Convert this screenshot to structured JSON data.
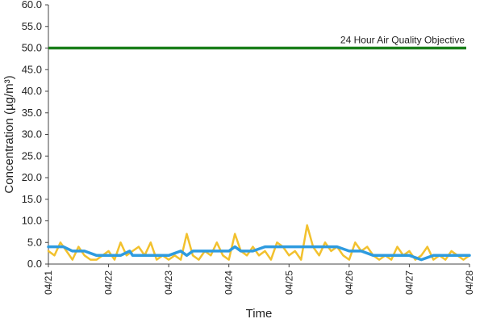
{
  "chart_data": {
    "type": "line",
    "title": "",
    "xlabel": "Time",
    "ylabel": "Concentration (µg/m³)",
    "ylim": [
      0,
      60
    ],
    "y_ticks": [
      "0.0",
      "5.0",
      "10.0",
      "15.0",
      "20.0",
      "25.0",
      "30.0",
      "35.0",
      "40.0",
      "45.0",
      "50.0",
      "55.0",
      "60.0"
    ],
    "x_ticks": [
      "04/21",
      "04/22",
      "04/23",
      "04/24",
      "04/25",
      "04/26",
      "04/27",
      "04/28"
    ],
    "grid": false,
    "legend": "none",
    "annotation": {
      "text": "24 Hour Air Quality Objective",
      "value": 50,
      "color": "#1a7f1a"
    },
    "series": [
      {
        "color": "#f2c12e",
        "x": [
          0,
          0.1,
          0.2,
          0.3,
          0.4,
          0.5,
          0.6,
          0.7,
          0.8,
          0.9,
          1.0,
          1.1,
          1.2,
          1.3,
          1.4,
          1.5,
          1.6,
          1.7,
          1.8,
          1.9,
          2.0,
          2.1,
          2.2,
          2.3,
          2.4,
          2.5,
          2.6,
          2.7,
          2.8,
          2.9,
          3.0,
          3.1,
          3.2,
          3.3,
          3.4,
          3.5,
          3.6,
          3.7,
          3.8,
          3.9,
          4.0,
          4.1,
          4.2,
          4.3,
          4.4,
          4.5,
          4.6,
          4.7,
          4.8,
          4.9,
          5.0,
          5.1,
          5.2,
          5.3,
          5.4,
          5.5,
          5.6,
          5.7,
          5.8,
          5.9,
          6.0,
          6.1,
          6.2,
          6.3,
          6.4,
          6.5,
          6.6,
          6.7,
          6.8,
          6.9,
          7.0
        ],
        "values": [
          3,
          2,
          5,
          3,
          1,
          4,
          2,
          1,
          1,
          2,
          3,
          1,
          5,
          2,
          3,
          4,
          2,
          5,
          1,
          2,
          1,
          2,
          1,
          7,
          2,
          1,
          3,
          2,
          5,
          2,
          1,
          7,
          3,
          2,
          4,
          2,
          3,
          1,
          5,
          4,
          2,
          3,
          1,
          9,
          4,
          2,
          5,
          3,
          4,
          2,
          1,
          5,
          3,
          4,
          2,
          1,
          2,
          1,
          4,
          2,
          3,
          1,
          2,
          4,
          1,
          2,
          1,
          3,
          2,
          1,
          2
        ],
        "values_dense": [
          3,
          2,
          5,
          3,
          1,
          4,
          2,
          1,
          1,
          2,
          3,
          1,
          5,
          2,
          3,
          4,
          2,
          5,
          1,
          2,
          1,
          2,
          1,
          7,
          2,
          1,
          3,
          2,
          5,
          2,
          1,
          7,
          3,
          2,
          4,
          2,
          3,
          1,
          5,
          4,
          2,
          3,
          1,
          9,
          4,
          2,
          5,
          3,
          4,
          2,
          1,
          5,
          3,
          4,
          2,
          1,
          2,
          1,
          4,
          2,
          3,
          1,
          2,
          4,
          1,
          2,
          1,
          3,
          2,
          1,
          2
        ]
      },
      {
        "color": "#2e9be0",
        "x": [
          0,
          0.25,
          0.4,
          0.6,
          0.8,
          1.0,
          1.2,
          1.35,
          1.4,
          1.55,
          1.8,
          2.0,
          2.2,
          2.3,
          2.4,
          2.6,
          2.8,
          3.0,
          3.1,
          3.2,
          3.4,
          3.6,
          3.8,
          4.0,
          4.2,
          4.4,
          4.6,
          4.8,
          5.0,
          5.2,
          5.4,
          5.6,
          5.8,
          6.0,
          6.2,
          6.4,
          6.6,
          6.8,
          7.0
        ],
        "values": [
          4,
          4,
          3,
          3,
          2,
          2,
          2,
          3,
          2,
          2,
          2,
          2,
          3,
          2,
          3,
          3,
          3,
          3,
          4,
          3,
          3,
          4,
          4,
          4,
          4,
          4,
          4,
          4,
          3,
          3,
          2,
          2,
          2,
          2,
          1,
          2,
          2,
          2,
          2
        ]
      }
    ]
  }
}
